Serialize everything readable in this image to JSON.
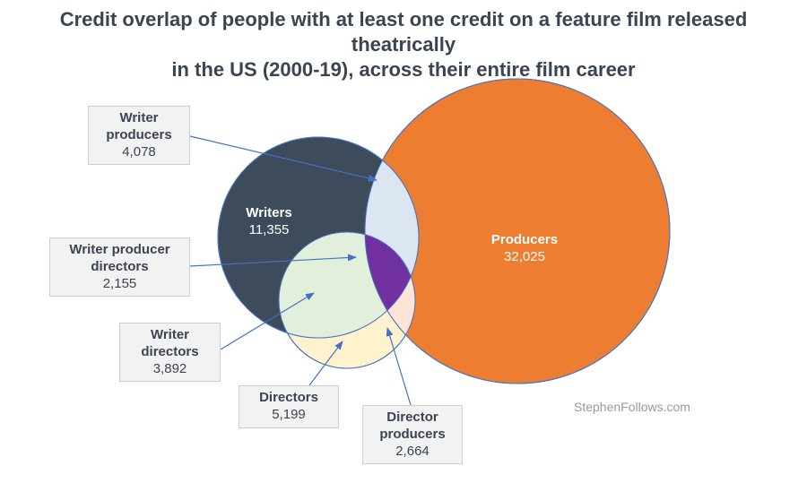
{
  "title": {
    "line1": "Credit overlap of people with at least one credit on a feature film released theatrically",
    "line2": "in the US (2000-19), across their entire film career"
  },
  "colors": {
    "writers": "#3e4b5b",
    "producers": "#ed7d31",
    "directors": "#fff2cc",
    "writer_producers": "#dce6f2",
    "writer_directors": "#e2efda",
    "director_producers": "#fce4d6",
    "writer_producer_directors": "#7030a0",
    "arrow": "#4472c4"
  },
  "sets": {
    "writers": {
      "label": "Writers",
      "value": "11,355"
    },
    "producers": {
      "label": "Producers",
      "value": "32,025"
    }
  },
  "callouts": {
    "writer_producers": {
      "label1": "Writer",
      "label2": "producers",
      "value": "4,078"
    },
    "writer_producer_directors": {
      "label1": "Writer producer",
      "label2": "directors",
      "value": "2,155"
    },
    "writer_directors": {
      "label1": "Writer",
      "label2": "directors",
      "value": "3,892"
    },
    "directors": {
      "label1": "Directors",
      "value": "5,199"
    },
    "director_producers": {
      "label1": "Director",
      "label2": "producers",
      "value": "2,664"
    }
  },
  "watermark": "StephenFollows.com"
}
